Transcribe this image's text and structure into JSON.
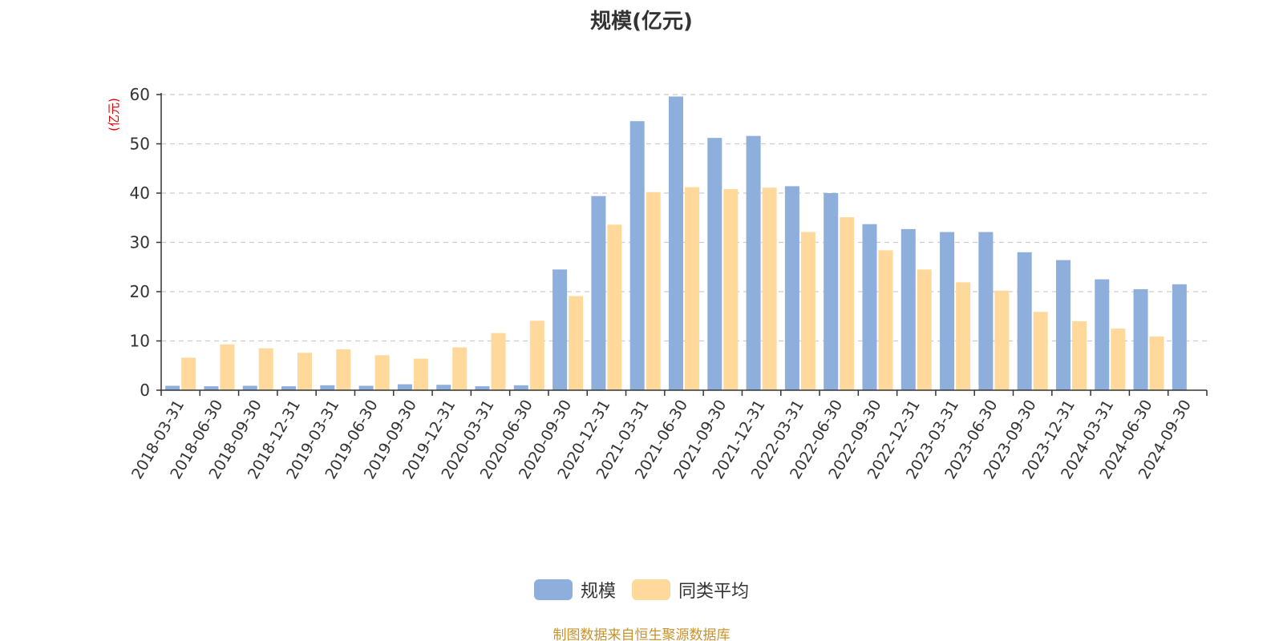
{
  "colors": {
    "series_scale": "#8eaedb",
    "series_peer": "#fed99b",
    "ylabel": "#e60000",
    "grid": "#cccccc",
    "axis": "#333333",
    "footer": "#c8922e"
  },
  "footer": {
    "source": "制图数据来自恒生聚源数据库"
  },
  "chart_data": {
    "type": "bar",
    "title": "规模(亿元)",
    "ylabel": "(亿元)",
    "xlabel": "",
    "ylim": [
      0,
      60
    ],
    "yticks": [
      0,
      10,
      20,
      30,
      40,
      50,
      60
    ],
    "grid": "horizontal dashed",
    "legend_position": "bottom-center",
    "categories": [
      "2018-03-31",
      "2018-06-30",
      "2018-09-30",
      "2018-12-31",
      "2019-03-31",
      "2019-06-30",
      "2019-09-30",
      "2019-12-31",
      "2020-03-31",
      "2020-06-30",
      "2020-09-30",
      "2020-12-31",
      "2021-03-31",
      "2021-06-30",
      "2021-09-30",
      "2021-12-31",
      "2022-03-31",
      "2022-06-30",
      "2022-09-30",
      "2022-12-31",
      "2023-03-31",
      "2023-06-30",
      "2023-09-30",
      "2023-12-31",
      "2024-03-31",
      "2024-06-30",
      "2024-09-30"
    ],
    "series": [
      {
        "name": "规模",
        "values": [
          0.9,
          0.8,
          0.9,
          0.8,
          1.0,
          0.9,
          1.2,
          1.1,
          0.8,
          1.0,
          24.5,
          39.4,
          54.6,
          59.6,
          51.2,
          51.6,
          41.4,
          40.0,
          33.7,
          32.7,
          32.1,
          32.1,
          28.0,
          26.4,
          22.5,
          20.5,
          21.5
        ]
      },
      {
        "name": "同类平均",
        "values": [
          6.6,
          9.3,
          8.5,
          7.6,
          8.3,
          7.1,
          6.4,
          8.7,
          11.6,
          14.1,
          19.1,
          33.6,
          40.2,
          41.2,
          40.8,
          41.1,
          32.1,
          35.1,
          28.4,
          24.5,
          21.9,
          20.2,
          15.9,
          14.0,
          12.5,
          10.9,
          null
        ]
      }
    ]
  }
}
